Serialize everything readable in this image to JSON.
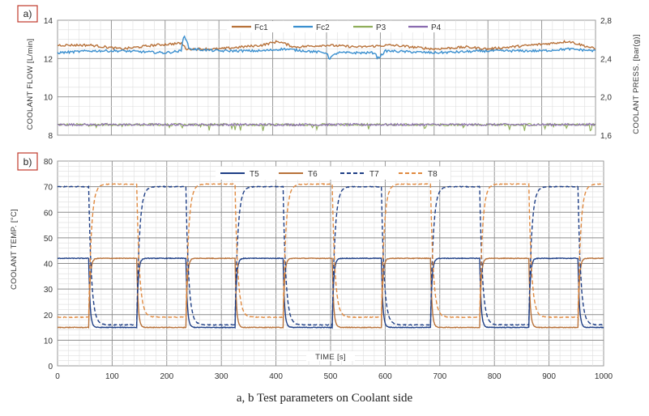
{
  "caption": "a, b  Test parameters on Coolant side",
  "chart_data": [
    {
      "panel": "a)",
      "type": "line",
      "xlim": [
        0,
        1000
      ],
      "ylabel": "COOLANT FLOW [L/min]",
      "ylim": [
        8,
        14
      ],
      "yticks": [
        "8",
        "10",
        "12",
        "14"
      ],
      "y2label": "COOLANT PRESS. [bar(g)]",
      "y2lim": [
        1.6,
        2.8
      ],
      "y2ticks": [
        "1,6",
        "2,0",
        "2,4",
        "2,8"
      ],
      "grid": true,
      "legend_position": "top-center",
      "series": [
        {
          "name": "Fc1",
          "axis": "left",
          "color": "#b8723a",
          "x": [
            0,
            60,
            120,
            150,
            180,
            230,
            240,
            300,
            380,
            410,
            440,
            500,
            560,
            620,
            700,
            760,
            800,
            840,
            920,
            950,
            1000
          ],
          "y": [
            12.7,
            12.7,
            12.5,
            12.6,
            12.7,
            12.8,
            12.5,
            12.5,
            12.7,
            12.9,
            12.6,
            12.7,
            12.6,
            12.7,
            12.5,
            12.6,
            12.5,
            12.6,
            12.8,
            12.9,
            12.5
          ]
        },
        {
          "name": "Fc2",
          "axis": "left",
          "color": "#3a8fcf",
          "x": [
            0,
            60,
            120,
            200,
            230,
            235,
            245,
            300,
            380,
            420,
            500,
            505,
            520,
            590,
            595,
            610,
            700,
            800,
            900,
            950,
            1000
          ],
          "y": [
            12.3,
            12.4,
            12.4,
            12.3,
            12.4,
            13.3,
            12.5,
            12.4,
            12.4,
            12.5,
            12.3,
            12.0,
            12.3,
            12.3,
            12.0,
            12.4,
            12.3,
            12.4,
            12.4,
            12.5,
            12.4
          ]
        },
        {
          "name": "P3",
          "axis": "right",
          "color": "#8fae5a",
          "x": [
            0,
            1000
          ],
          "y": [
            1.71,
            1.71
          ]
        },
        {
          "name": "P4",
          "axis": "right",
          "color": "#8a6bb0",
          "x": [
            0,
            1000
          ],
          "y": [
            1.71,
            1.71
          ]
        }
      ]
    },
    {
      "panel": "b)",
      "type": "line",
      "xlabel": "TIME  [s]",
      "xlim": [
        0,
        1000
      ],
      "xticks": [
        "0",
        "100",
        "200",
        "300",
        "400",
        "500",
        "600",
        "700",
        "800",
        "900",
        "1000"
      ],
      "ylabel": "COOLANT  TEMP. [°C]",
      "ylim": [
        0,
        80
      ],
      "yticks": [
        "0",
        "10",
        "20",
        "30",
        "40",
        "50",
        "60",
        "70",
        "80"
      ],
      "grid": true,
      "legend_position": "top-center",
      "switch_times": [
        0,
        57,
        145,
        235,
        325,
        413,
        503,
        593,
        683,
        773,
        863,
        953
      ],
      "series": [
        {
          "name": "T5",
          "color": "#1f3f86",
          "dash": false,
          "start_state": "high",
          "high": 42,
          "low": 15
        },
        {
          "name": "T6",
          "color": "#b8723a",
          "dash": false,
          "start_state": "low",
          "high": 42,
          "low": 15
        },
        {
          "name": "T7",
          "color": "#1f3f86",
          "dash": true,
          "start_state": "high",
          "high": 70,
          "low": 16
        },
        {
          "name": "T8",
          "color": "#e08a40",
          "dash": true,
          "start_state": "low",
          "high": 71,
          "low": 19
        }
      ]
    }
  ]
}
